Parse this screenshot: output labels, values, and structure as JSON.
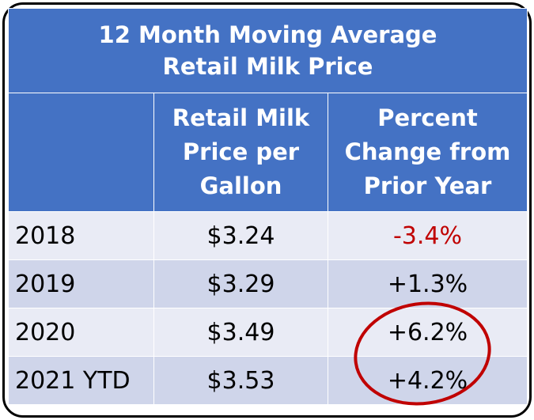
{
  "chart_data": {
    "type": "table",
    "title_line1": "12 Month Moving Average",
    "title_line2": "Retail Milk Price",
    "columns": [
      "",
      [
        "Retail Milk",
        "Price per",
        "Gallon"
      ],
      [
        "Percent",
        "Change from",
        "Prior Year"
      ]
    ],
    "rows": [
      {
        "year": "2018",
        "price": "$3.24",
        "change": "-3.4%"
      },
      {
        "year": "2019",
        "price": "$3.29",
        "change": "+1.3%"
      },
      {
        "year": "2020",
        "price": "$3.49",
        "change": "+6.2%"
      },
      {
        "year": "2021 YTD",
        "price": "$3.53",
        "change": "+4.2%"
      }
    ],
    "highlighted_rows": [
      "2020",
      "2021 YTD"
    ]
  },
  "colors": {
    "header_bg": "#4472c4",
    "row_light": "#e9ebf5",
    "row_dark": "#cfd5ea",
    "negative_text": "#c00000",
    "highlight_circle": "#c00000"
  }
}
